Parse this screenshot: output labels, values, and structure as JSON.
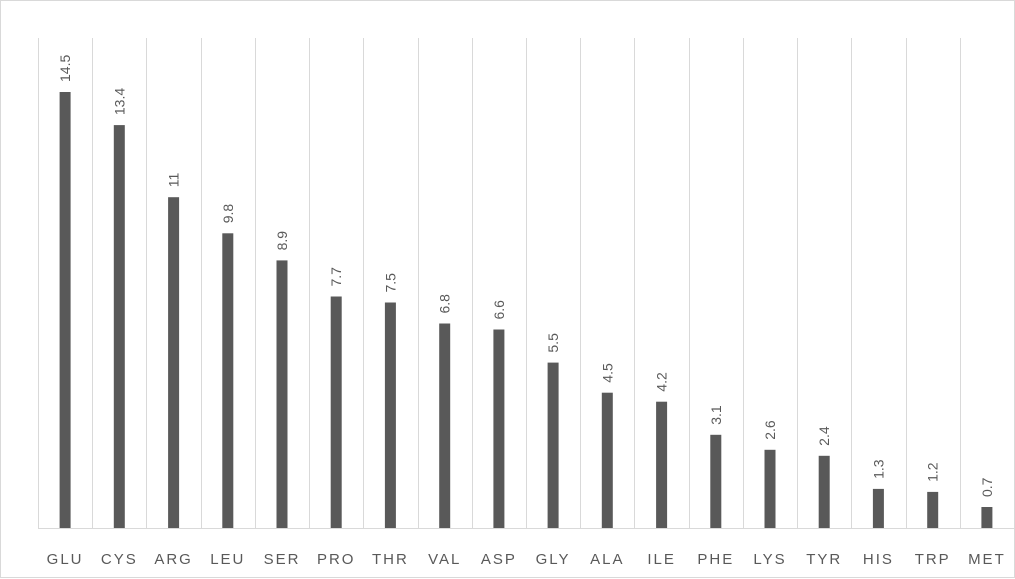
{
  "chart_data": {
    "type": "bar",
    "title": "",
    "xlabel": "",
    "ylabel": "",
    "categories": [
      "GLU",
      "CYS",
      "ARG",
      "LEU",
      "SER",
      "PRO",
      "THR",
      "VAL",
      "ASP",
      "GLY",
      "ALA",
      "ILE",
      "PHE",
      "LYS",
      "TYR",
      "HIS",
      "TRP",
      "MET"
    ],
    "values": [
      14.5,
      13.4,
      11,
      9.8,
      8.9,
      7.7,
      7.5,
      6.8,
      6.6,
      5.5,
      4.5,
      4.2,
      3.1,
      2.6,
      2.4,
      1.3,
      1.2,
      0.7
    ],
    "data_labels": [
      "14.5",
      "13.4",
      "11",
      "9.8",
      "8.9",
      "7.7",
      "7.5",
      "6.8",
      "6.6",
      "5.5",
      "4.5",
      "4.2",
      "3.1",
      "2.6",
      "2.4",
      "1.3",
      "1.2",
      "0.7"
    ],
    "ylim": [
      0,
      16
    ],
    "grid": "vertical category dividers",
    "legend": "none",
    "colors": {
      "bar": "#595959",
      "grid": "#d9d9d9",
      "text": "#595959"
    }
  }
}
